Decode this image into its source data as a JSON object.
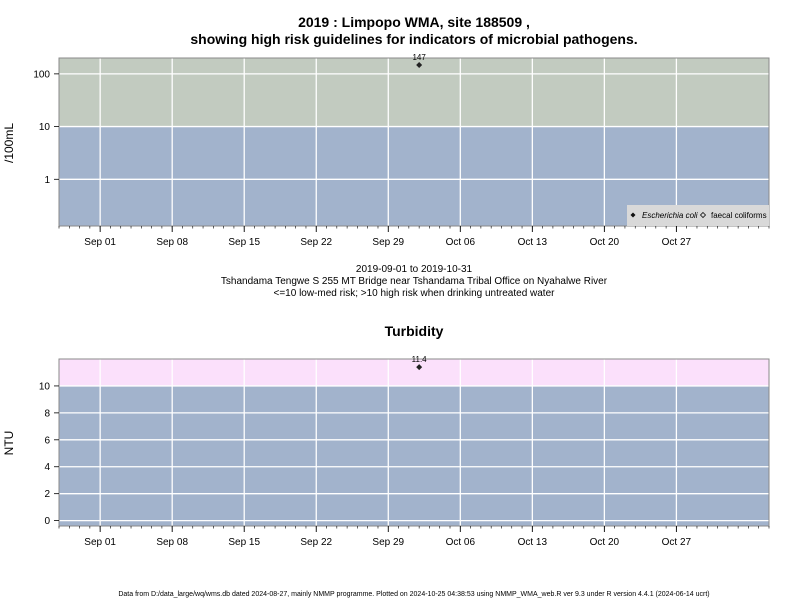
{
  "header": {
    "title_line1": "2019 : Limpopo WMA, site 188509 ,",
    "title_line2": "showing high risk guidelines for indicators of microbial pathogens."
  },
  "caption": {
    "date_range": "2019-09-01 to 2019-10-31",
    "site": "Tshandama Tengwe S 255 MT Bridge near Tshandama Tribal Office on Nyahalwe River",
    "guideline": "<=10 low-med risk; >10 high risk when drinking untreated water"
  },
  "footer": {
    "text": "Data from D:/data_large/wq/wms.db dated 2024-08-27, mainly NMMP programme. Plotted on 2024-10-25 04:38:53 using NMMP_WMA_web.R ver 9.3 under R version 4.4.1 (2024-06-14 ucrt)"
  },
  "chart_data": [
    {
      "type": "scatter",
      "title": "",
      "xlabel": "",
      "ylabel": "/100mL",
      "y_scale": "log",
      "ylim": [
        0.13,
        200
      ],
      "xlim": [
        "2019-08-28",
        "2019-11-05"
      ],
      "x_ticks": [
        "2019-09-01",
        "2019-09-08",
        "2019-09-15",
        "2019-09-22",
        "2019-09-29",
        "2019-10-06",
        "2019-10-13",
        "2019-10-20",
        "2019-10-27"
      ],
      "x_tick_labels": [
        "Sep 01",
        "Sep 08",
        "Sep 15",
        "Sep 22",
        "Sep 29",
        "Oct 06",
        "Oct 13",
        "Oct 20",
        "Oct 27"
      ],
      "y_ticks": [
        1,
        10,
        100
      ],
      "y_tick_labels": [
        "1",
        "10",
        "100"
      ],
      "threshold": 10,
      "band_colors": {
        "low": "#a2b3cc",
        "high": "#c2cbc0"
      },
      "grid": true,
      "series": [
        {
          "name": "Escherichia coli",
          "marker": "filled-diamond",
          "points": [
            {
              "x": "2019-10-02",
              "y": 147,
              "label": "147"
            }
          ]
        },
        {
          "name": "faecal coliforms",
          "marker": "open-diamond",
          "points": []
        }
      ],
      "legend": {
        "placement": "bottom-right"
      }
    },
    {
      "type": "scatter",
      "title": "Turbidity",
      "xlabel": "",
      "ylabel": "NTU",
      "y_scale": "linear",
      "ylim": [
        -0.4,
        12
      ],
      "xlim": [
        "2019-08-28",
        "2019-11-05"
      ],
      "x_ticks": [
        "2019-09-01",
        "2019-09-08",
        "2019-09-15",
        "2019-09-22",
        "2019-09-29",
        "2019-10-06",
        "2019-10-13",
        "2019-10-20",
        "2019-10-27"
      ],
      "x_tick_labels": [
        "Sep 01",
        "Sep 08",
        "Sep 15",
        "Sep 22",
        "Sep 29",
        "Oct 06",
        "Oct 13",
        "Oct 20",
        "Oct 27"
      ],
      "y_ticks": [
        0,
        2,
        4,
        6,
        8,
        10
      ],
      "y_tick_labels": [
        "0",
        "2",
        "4",
        "6",
        "8",
        "10"
      ],
      "threshold": 10,
      "band_colors": {
        "low": "#a2b3cc",
        "high": "#fbe0fb"
      },
      "grid": true,
      "series": [
        {
          "name": "",
          "marker": "filled-diamond",
          "points": [
            {
              "x": "2019-10-02",
              "y": 11.4,
              "label": "11.4"
            }
          ]
        }
      ]
    }
  ]
}
